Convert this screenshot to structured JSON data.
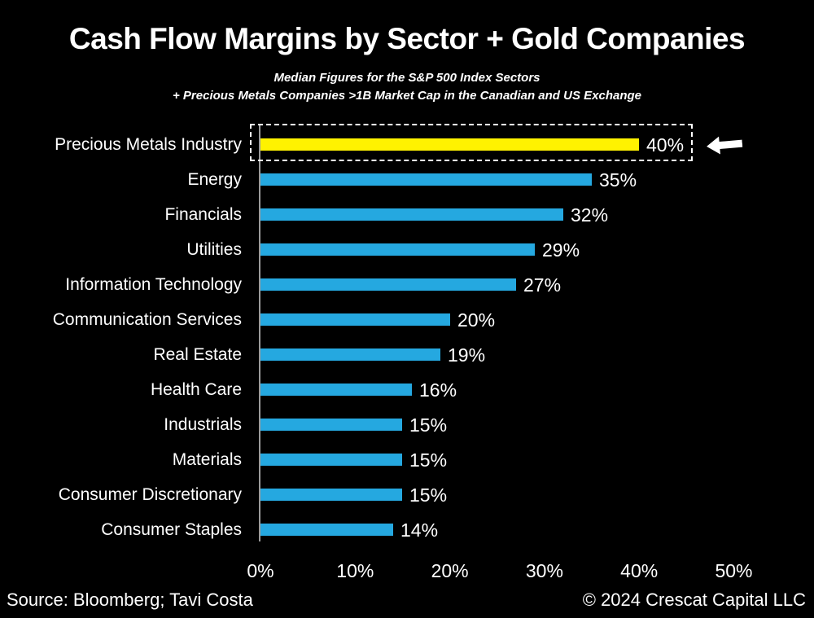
{
  "page": {
    "background": "#000000"
  },
  "header": {
    "title": "Cash Flow Margins by Sector + Gold Companies",
    "subtitle_line1": "Median Figures for the S&P 500 Index Sectors",
    "subtitle_line2": "+ Precious Metals Companies >1B Market Cap in the Canadian and US Exchange"
  },
  "chart_data": {
    "type": "bar",
    "orientation": "horizontal",
    "title": "Cash Flow Margins by Sector + Gold Companies",
    "categories": [
      "Precious Metals Industry",
      "Energy",
      "Financials",
      "Utilities",
      "Information Technology",
      "Communication Services",
      "Real Estate",
      "Health Care",
      "Industrials",
      "Materials",
      "Consumer Discretionary",
      "Consumer Staples"
    ],
    "values": [
      40,
      35,
      32,
      29,
      27,
      20,
      19,
      16,
      15,
      15,
      15,
      14
    ],
    "display_values": [
      "40%",
      "35%",
      "32%",
      "29%",
      "27%",
      "20%",
      "19%",
      "16%",
      "15%",
      "15%",
      "15%",
      "14%"
    ],
    "x_ticks": [
      "0%",
      "10%",
      "20%",
      "30%",
      "40%",
      "50%"
    ],
    "x_tick_values": [
      0,
      10,
      20,
      30,
      40,
      50
    ],
    "xlim": [
      0,
      50
    ],
    "grid": false,
    "legend": "none",
    "bar_color": "#25A8E0",
    "highlight_index": 0,
    "highlight_color": "#FFF200",
    "highlight_annotation": "dashed-box-with-left-arrow",
    "axis_color": "#9B9B9B",
    "text_color": "#FFFFFF"
  },
  "footer": {
    "source": "Source: Bloomberg; Tavi Costa",
    "copyright": "© 2024 Crescat Capital LLC"
  }
}
